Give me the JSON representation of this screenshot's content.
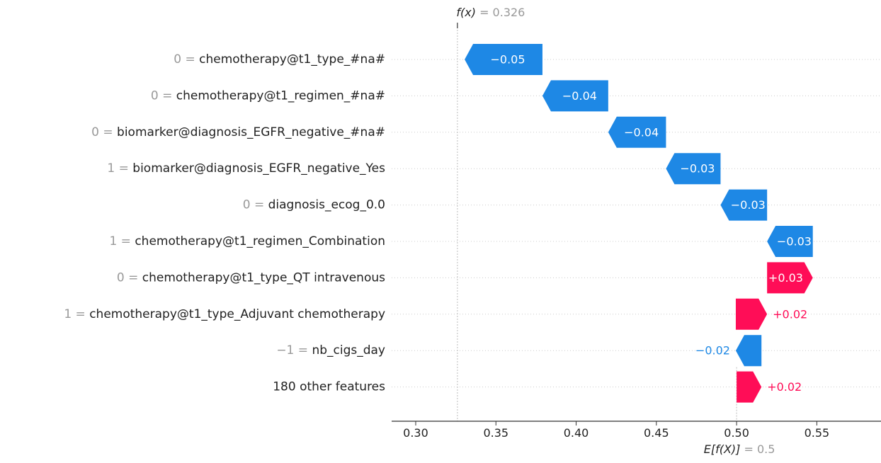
{
  "chart_data": {
    "type": "waterfall",
    "title": "",
    "xlabel": "",
    "ylabel": "",
    "xlim": [
      0.285,
      0.59
    ],
    "x_ticks": [
      0.3,
      0.35,
      0.4,
      0.45,
      0.5,
      0.55
    ],
    "x_tick_labels": [
      "0.30",
      "0.35",
      "0.40",
      "0.45",
      "0.50",
      "0.55"
    ],
    "base_value": 0.5,
    "output_value": 0.326,
    "base_label": {
      "prefix": "E[f(X)]",
      "suffix": "= 0.5"
    },
    "output_label": {
      "prefix": "f(x)",
      "suffix": "= 0.326"
    },
    "grid": "horizontal dotted",
    "colors": {
      "positive": "#ff0d57",
      "negative": "#1e88e5",
      "value_text": "#999999",
      "axis": "#333333"
    },
    "features": [
      {
        "value": "0",
        "name": "chemotherapy@t1_type_#na#",
        "shap": -0.0485,
        "label": "−0.05"
      },
      {
        "value": "0",
        "name": "chemotherapy@t1_regimen_#na#",
        "shap": -0.041,
        "label": "−0.04"
      },
      {
        "value": "0",
        "name": "biomarker@diagnosis_EGFR_negative_#na#",
        "shap": -0.036,
        "label": "−0.04"
      },
      {
        "value": "1",
        "name": "biomarker@diagnosis_EGFR_negative_Yes",
        "shap": -0.034,
        "label": "−0.03"
      },
      {
        "value": "0",
        "name": "diagnosis_ecog_0.0",
        "shap": -0.029,
        "label": "−0.03"
      },
      {
        "value": "1",
        "name": "chemotherapy@t1_regimen_Combination",
        "shap": -0.0285,
        "label": "−0.03"
      },
      {
        "value": "0",
        "name": "chemotherapy@t1_type_QT intravenous",
        "shap": 0.0285,
        "label": "+0.03"
      },
      {
        "value": "1",
        "name": "chemotherapy@t1_type_Adjuvant chemotherapy",
        "shap": 0.0195,
        "label": "+0.02"
      },
      {
        "value": "−1",
        "name": "nb_cigs_day",
        "shap": -0.016,
        "label": "−0.02"
      },
      {
        "value": "",
        "name": "180 other features",
        "shap": 0.0155,
        "label": "+0.02"
      }
    ]
  }
}
